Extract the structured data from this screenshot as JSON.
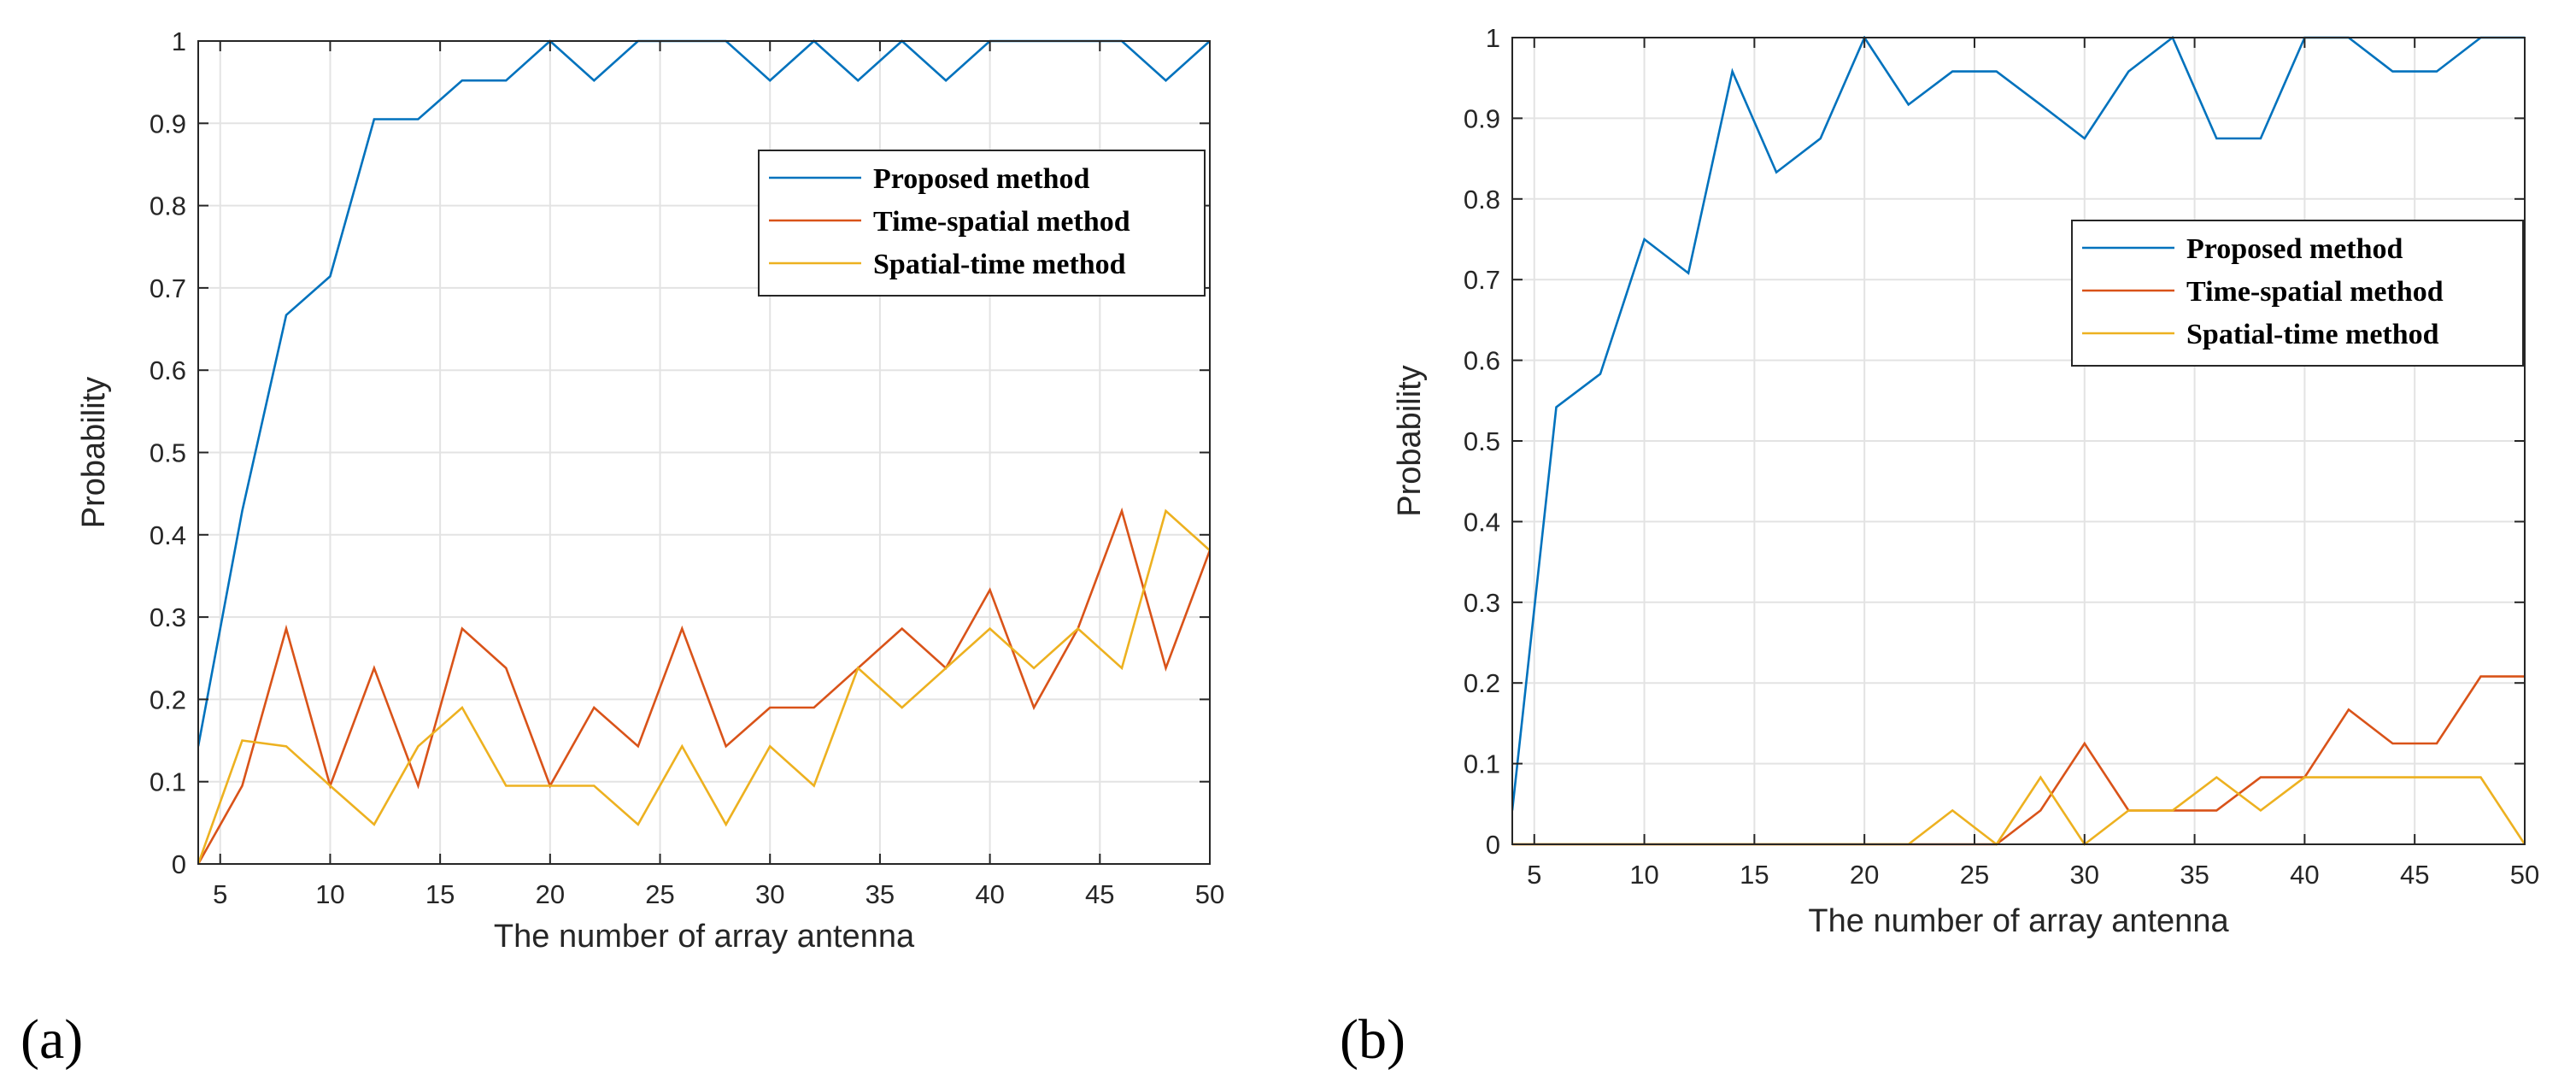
{
  "colors": {
    "proposed": "#0072BD",
    "time_spatial": "#D95319",
    "spatial_time": "#EDB120",
    "grid": "#e3e3e3",
    "axis": "#262626"
  },
  "chart_data": [
    {
      "type": "line",
      "panel_label": "(a)",
      "xlabel": "The number of array antenna",
      "ylabel": "Probability",
      "xlim": [
        4,
        50
      ],
      "ylim": [
        0,
        1
      ],
      "xticks": [
        5,
        10,
        15,
        20,
        25,
        30,
        35,
        40,
        45,
        50
      ],
      "yticks": [
        0,
        0.1,
        0.2,
        0.3,
        0.4,
        0.5,
        0.6,
        0.7,
        0.8,
        0.9,
        1
      ],
      "grid": true,
      "legend_position": "top-right",
      "x": [
        4,
        6,
        8,
        10,
        12,
        14,
        16,
        18,
        20,
        22,
        24,
        26,
        28,
        30,
        32,
        34,
        36,
        38,
        40,
        42,
        44,
        46,
        48,
        50
      ],
      "series": [
        {
          "name": "Proposed method",
          "color_key": "proposed",
          "values": [
            0.143,
            0.429,
            0.667,
            0.714,
            0.905,
            0.905,
            0.952,
            0.952,
            1.0,
            0.952,
            1.0,
            1.0,
            1.0,
            0.952,
            1.0,
            0.952,
            1.0,
            0.952,
            1.0,
            1.0,
            1.0,
            1.0,
            0.952,
            1.0
          ]
        },
        {
          "name": "Time-spatial method",
          "color_key": "time_spatial",
          "values": [
            0.0,
            0.095,
            0.286,
            0.095,
            0.238,
            0.095,
            0.286,
            0.238,
            0.095,
            0.19,
            0.143,
            0.286,
            0.143,
            0.19,
            0.19,
            0.238,
            0.286,
            0.238,
            0.333,
            0.19,
            0.286,
            0.429,
            0.238,
            0.381
          ]
        },
        {
          "name": "Spatial-time method",
          "color_key": "spatial_time",
          "values": [
            0.0,
            0.15,
            0.143,
            0.095,
            0.048,
            0.143,
            0.19,
            0.095,
            0.095,
            0.095,
            0.048,
            0.143,
            0.048,
            0.143,
            0.095,
            0.238,
            0.19,
            0.238,
            0.286,
            0.238,
            0.286,
            0.238,
            0.429,
            0.381
          ]
        }
      ]
    },
    {
      "type": "line",
      "panel_label": "(b)",
      "xlabel": "The number of array antenna",
      "ylabel": "Probability",
      "xlim": [
        4,
        50
      ],
      "ylim": [
        0,
        1
      ],
      "xticks": [
        5,
        10,
        15,
        20,
        25,
        30,
        35,
        40,
        45,
        50
      ],
      "yticks": [
        0,
        0.1,
        0.2,
        0.3,
        0.4,
        0.5,
        0.6,
        0.7,
        0.8,
        0.9,
        1
      ],
      "grid": true,
      "legend_position": "right",
      "x": [
        4,
        6,
        8,
        10,
        12,
        14,
        16,
        18,
        20,
        22,
        24,
        26,
        28,
        30,
        32,
        34,
        36,
        38,
        40,
        42,
        44,
        46,
        48,
        50
      ],
      "series": [
        {
          "name": "Proposed method",
          "color_key": "proposed",
          "values": [
            0.042,
            0.542,
            0.583,
            0.75,
            0.708,
            0.958,
            0.833,
            0.875,
            1.0,
            0.917,
            0.958,
            0.958,
            0.917,
            0.875,
            0.958,
            1.0,
            0.875,
            0.875,
            1.0,
            1.0,
            0.958,
            0.958,
            1.0,
            1.0
          ]
        },
        {
          "name": "Time-spatial method",
          "color_key": "time_spatial",
          "values": [
            0,
            0,
            0,
            0,
            0,
            0,
            0,
            0,
            0,
            0,
            0,
            0,
            0.042,
            0.125,
            0.042,
            0.042,
            0.042,
            0.083,
            0.083,
            0.167,
            0.125,
            0.125,
            0.208,
            0.208
          ]
        },
        {
          "name": "Spatial-time method",
          "color_key": "spatial_time",
          "values": [
            0,
            0,
            0,
            0,
            0,
            0,
            0,
            0,
            0,
            0,
            0.042,
            0,
            0.083,
            0,
            0.042,
            0.042,
            0.083,
            0.042,
            0.083,
            0.083,
            0.083,
            0.083,
            0.083,
            0
          ]
        }
      ]
    }
  ]
}
